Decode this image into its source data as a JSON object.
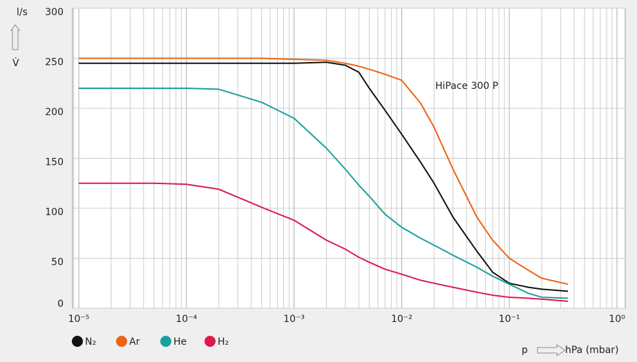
{
  "chart_data": {
    "type": "line",
    "annotation": "HiPace 300 P",
    "y_label": "l/s",
    "y_symbol": "V̇",
    "x_label_symbol": "p",
    "x_label_unit": "hPa (mbar)",
    "log_x": true,
    "grid": true,
    "xlim": [
      1e-05,
      1
    ],
    "ylim": [
      0,
      300
    ],
    "xticks": [
      {
        "value": 1e-05,
        "label": "10⁻⁵"
      },
      {
        "value": 0.0001,
        "label": "10⁻⁴"
      },
      {
        "value": 0.001,
        "label": "10⁻³"
      },
      {
        "value": 0.01,
        "label": "10⁻²"
      },
      {
        "value": 0.1,
        "label": "10⁻¹"
      },
      {
        "value": 1,
        "label": "10⁰"
      }
    ],
    "yticks": [
      0,
      50,
      100,
      150,
      200,
      250,
      300
    ],
    "x": [
      1e-05,
      2e-05,
      5e-05,
      0.0001,
      0.0002,
      0.0005,
      0.001,
      0.002,
      0.003,
      0.004,
      0.005,
      0.007,
      0.01,
      0.015,
      0.02,
      0.03,
      0.05,
      0.07,
      0.1,
      0.15,
      0.2,
      0.35
    ],
    "series": [
      {
        "name": "N₂",
        "color": "#111111",
        "values": [
          245,
          245,
          245,
          245,
          245,
          245,
          245,
          246,
          243,
          236,
          220,
          198,
          174,
          146,
          125,
          91,
          57,
          36,
          25,
          21,
          19,
          17
        ]
      },
      {
        "name": "Ar",
        "color": "#ec6316",
        "values": [
          250,
          250,
          250,
          250,
          250,
          250,
          249,
          248,
          245,
          242,
          239,
          234,
          228,
          205,
          181,
          139,
          91,
          68,
          50,
          38,
          30,
          24
        ]
      },
      {
        "name": "He",
        "color": "#16a09f",
        "values": [
          220,
          220,
          220,
          220,
          219,
          206,
          190,
          160,
          139,
          123,
          112,
          94,
          81,
          70,
          63,
          53,
          41,
          32,
          24,
          15,
          11,
          10
        ]
      },
      {
        "name": "H₂",
        "color": "#dd1a4a",
        "values": [
          125,
          125,
          125,
          124,
          119,
          101,
          88,
          68,
          59,
          51,
          46,
          39,
          34,
          28,
          25,
          21,
          16,
          13,
          11,
          10,
          9,
          7
        ]
      }
    ]
  }
}
